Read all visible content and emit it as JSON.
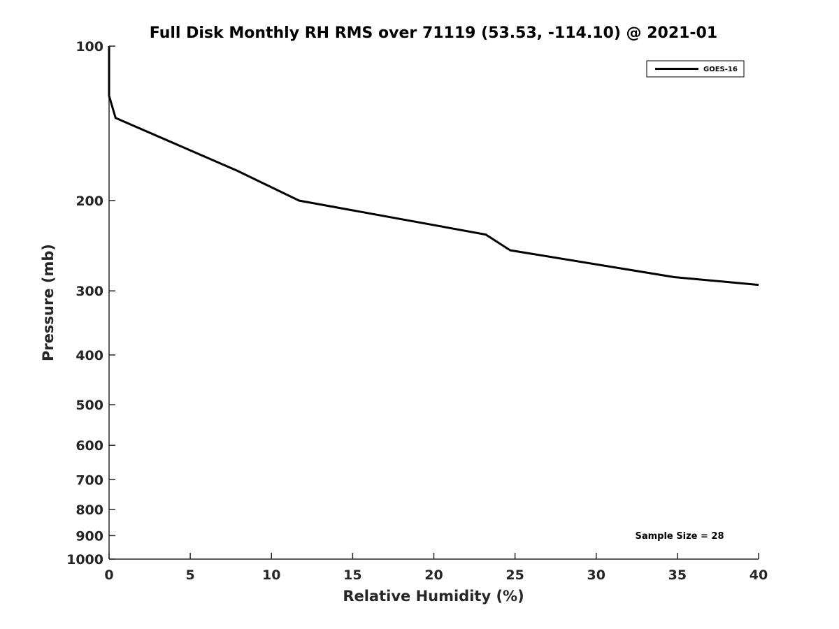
{
  "chart_data": {
    "type": "line",
    "title": "Full Disk Monthly RH RMS over 71119 (53.53, -114.10) @ 2021-01",
    "xlabel": "Relative Humidity (%)",
    "ylabel": "Pressure (mb)",
    "xlim": [
      0,
      40
    ],
    "ylim": [
      100,
      1000
    ],
    "y_scale": "log",
    "y_reversed": true,
    "grid": false,
    "legend_position": "top-right",
    "x_ticks": [
      0,
      5,
      10,
      15,
      20,
      25,
      30,
      35,
      40
    ],
    "x_tick_labels": [
      "0",
      "5",
      "10",
      "15",
      "20",
      "25",
      "30",
      "35",
      "40"
    ],
    "y_ticks": [
      100,
      200,
      300,
      400,
      500,
      600,
      700,
      800,
      900,
      1000
    ],
    "y_tick_labels": [
      "100",
      "200",
      "300",
      "400",
      "500",
      "600",
      "700",
      "800",
      "900",
      "1000"
    ],
    "series": [
      {
        "name": "GOES-16",
        "color": "#000000",
        "points": [
          {
            "x": 0.0,
            "y": 100
          },
          {
            "x": 0.0,
            "y": 125
          },
          {
            "x": 0.4,
            "y": 138
          },
          {
            "x": 7.9,
            "y": 175
          },
          {
            "x": 11.7,
            "y": 200
          },
          {
            "x": 23.2,
            "y": 233
          },
          {
            "x": 24.7,
            "y": 250
          },
          {
            "x": 34.8,
            "y": 282
          },
          {
            "x": 40.0,
            "y": 292
          }
        ]
      }
    ],
    "annotation": "Sample Size = 28"
  }
}
